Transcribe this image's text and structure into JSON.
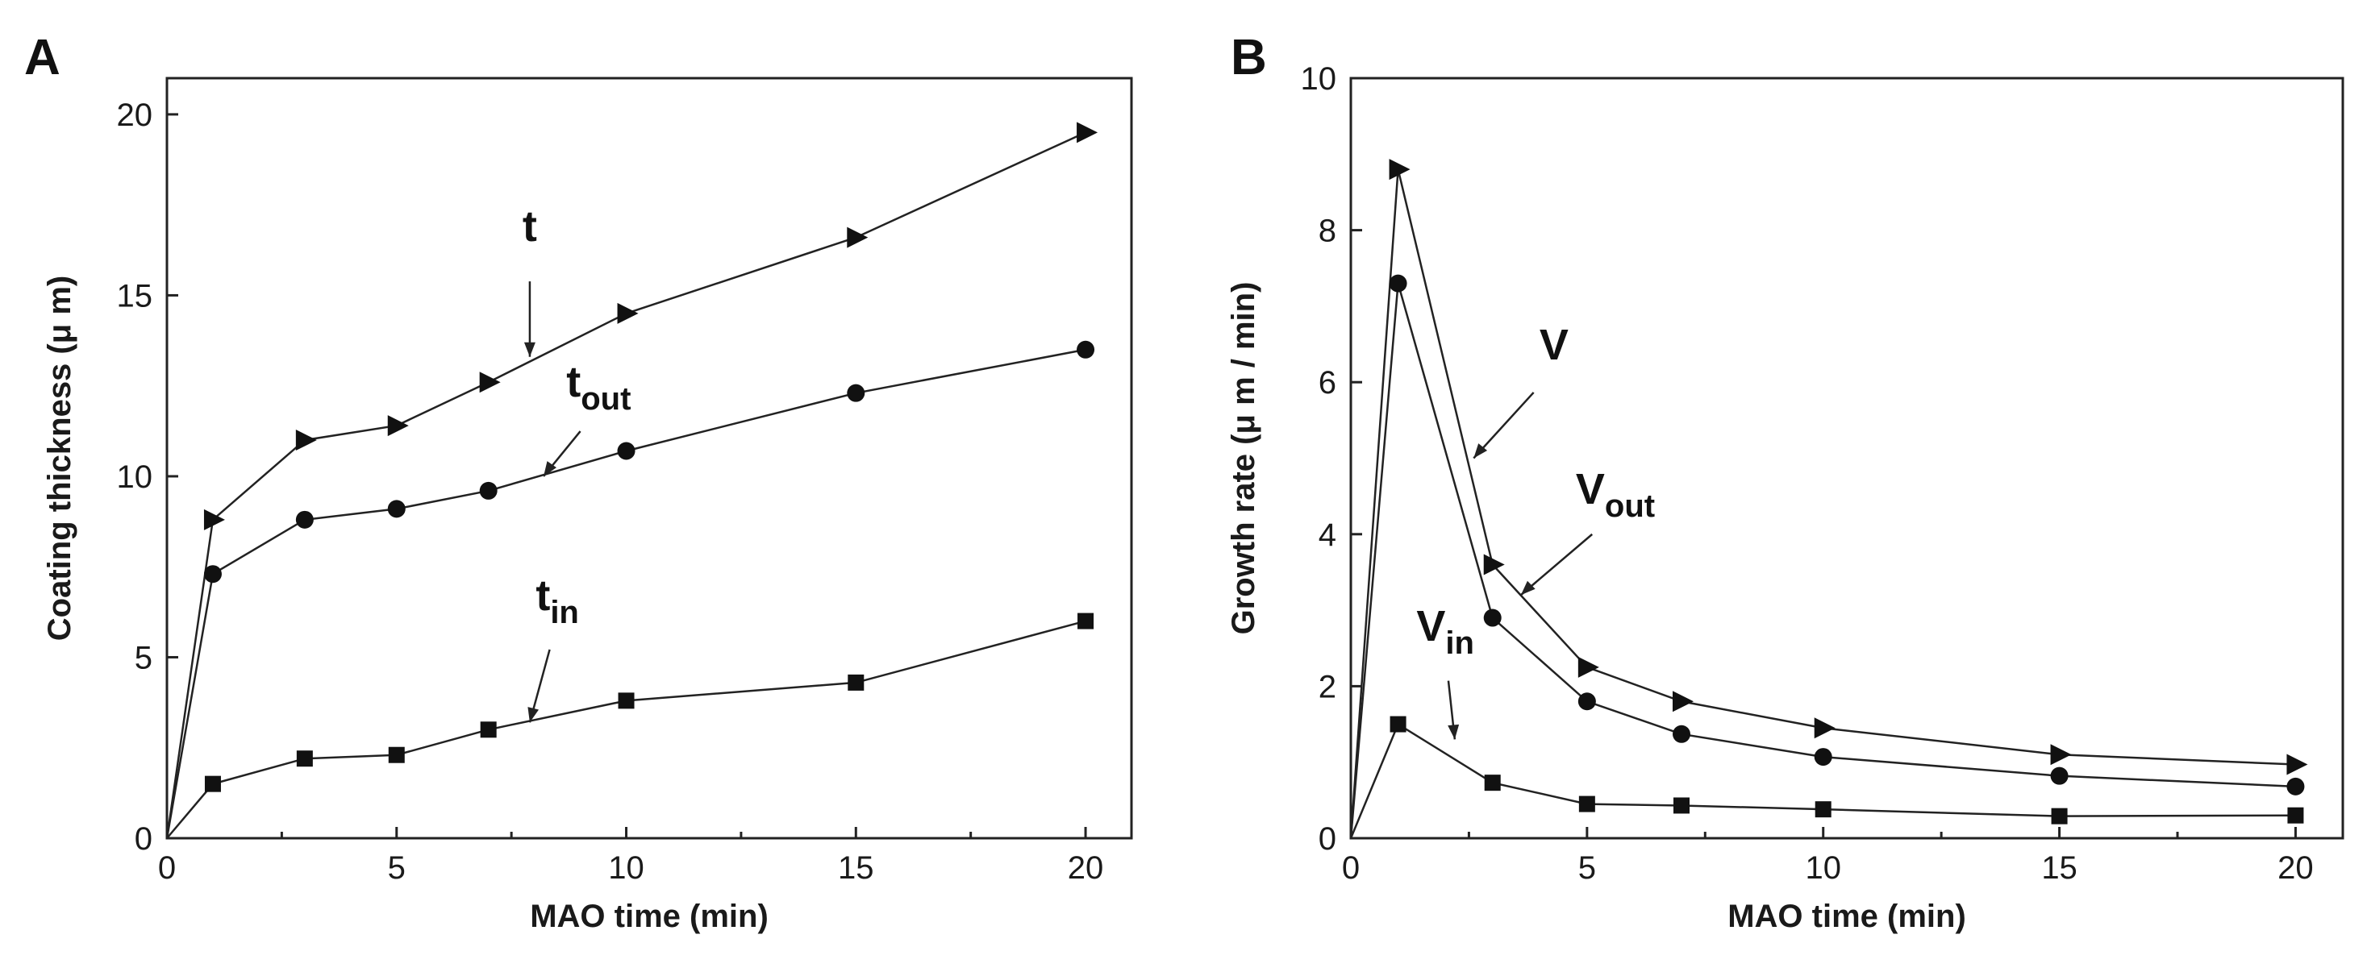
{
  "chart_data": [
    {
      "panel": "A",
      "type": "line",
      "xlabel": "MAO time (min)",
      "ylabel": "Coating thickness (μ m)",
      "xlim": [
        0,
        21
      ],
      "ylim": [
        0,
        21
      ],
      "xticks": [
        0,
        5,
        10,
        15,
        20
      ],
      "yticks": [
        0,
        5,
        10,
        15,
        20
      ],
      "series": [
        {
          "name": "t",
          "sub": "",
          "marker": "triangle",
          "x": [
            0,
            1,
            3,
            5,
            7,
            10,
            15,
            20
          ],
          "y": [
            0,
            8.8,
            11.0,
            11.4,
            12.6,
            14.5,
            16.6,
            19.5
          ]
        },
        {
          "name": "t",
          "sub": "out",
          "marker": "circle",
          "x": [
            0,
            1,
            3,
            5,
            7,
            10,
            15,
            20
          ],
          "y": [
            0,
            7.3,
            8.8,
            9.1,
            9.6,
            10.7,
            12.3,
            13.5
          ]
        },
        {
          "name": "t",
          "sub": "in",
          "marker": "square",
          "x": [
            0,
            1,
            3,
            5,
            7,
            10,
            15,
            20
          ],
          "y": [
            0,
            1.5,
            2.2,
            2.3,
            3.0,
            3.8,
            4.3,
            6.0
          ]
        }
      ],
      "annotations": [
        {
          "text": "t",
          "sub": "",
          "tx": 7.9,
          "ty": 16.5,
          "ax": 7.9,
          "ay": 13.3
        },
        {
          "text": "t",
          "sub": "out",
          "tx": 9.4,
          "ty": 12.2,
          "ax": 8.2,
          "ay": 10.0
        },
        {
          "text": "t",
          "sub": "in",
          "tx": 8.5,
          "ty": 6.3,
          "ax": 7.9,
          "ay": 3.2
        }
      ]
    },
    {
      "panel": "B",
      "type": "line",
      "xlabel": "MAO time (min)",
      "ylabel": "Growth rate (μ m / min)",
      "xlim": [
        0,
        21
      ],
      "ylim": [
        0,
        10
      ],
      "xticks": [
        0,
        5,
        10,
        15,
        20
      ],
      "yticks": [
        0,
        2,
        4,
        6,
        8,
        10
      ],
      "series": [
        {
          "name": "V",
          "sub": "",
          "marker": "triangle",
          "x": [
            0,
            1,
            3,
            5,
            7,
            10,
            15,
            20
          ],
          "y": [
            0,
            8.8,
            3.6,
            2.25,
            1.8,
            1.45,
            1.1,
            0.97
          ]
        },
        {
          "name": "V",
          "sub": "out",
          "marker": "circle",
          "x": [
            0,
            1,
            3,
            5,
            7,
            10,
            15,
            20
          ],
          "y": [
            0,
            7.3,
            2.9,
            1.8,
            1.37,
            1.07,
            0.82,
            0.68
          ]
        },
        {
          "name": "V",
          "sub": "in",
          "marker": "square",
          "x": [
            0,
            1,
            3,
            5,
            7,
            10,
            15,
            20
          ],
          "y": [
            0,
            1.5,
            0.73,
            0.45,
            0.43,
            0.38,
            0.29,
            0.3
          ]
        }
      ],
      "annotations": [
        {
          "text": "V",
          "sub": "",
          "tx": 4.3,
          "ty": 6.3,
          "ax": 2.6,
          "ay": 5.0
        },
        {
          "text": "V",
          "sub": "out",
          "tx": 5.6,
          "ty": 4.4,
          "ax": 3.6,
          "ay": 3.2
        },
        {
          "text": "V",
          "sub": "in",
          "tx": 2.0,
          "ty": 2.6,
          "ax": 2.2,
          "ay": 1.3
        }
      ]
    }
  ]
}
